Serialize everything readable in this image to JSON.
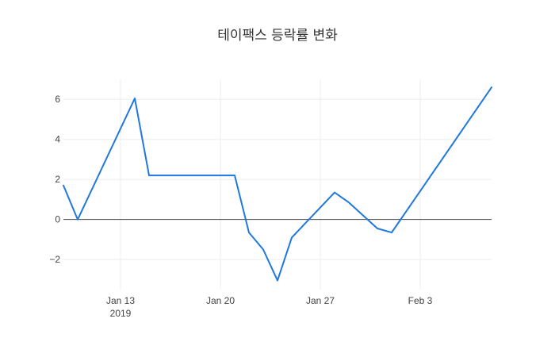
{
  "chart_data": {
    "type": "line",
    "title": "테이팩스 등락률 변화",
    "xlabel": "",
    "ylabel": "",
    "x": [
      "2019-01-09",
      "2019-01-10",
      "2019-01-14",
      "2019-01-15",
      "2019-01-21",
      "2019-01-22",
      "2019-01-23",
      "2019-01-24",
      "2019-01-25",
      "2019-01-28",
      "2019-01-29",
      "2019-01-31",
      "2019-02-01",
      "2019-02-08"
    ],
    "y": [
      1.7,
      0.0,
      6.05,
      2.2,
      2.2,
      -0.65,
      -1.5,
      -3.05,
      -0.9,
      1.35,
      0.85,
      -0.45,
      -0.65,
      6.6
    ],
    "xlim": [
      "2019-01-09",
      "2019-02-08"
    ],
    "ylim": [
      -3.5,
      7.0
    ],
    "x_ticks": [
      {
        "date": "2019-01-13",
        "label": "Jan 13",
        "sublabel": "2019"
      },
      {
        "date": "2019-01-20",
        "label": "Jan 20",
        "sublabel": ""
      },
      {
        "date": "2019-01-27",
        "label": "Jan 27",
        "sublabel": ""
      },
      {
        "date": "2019-02-03",
        "label": "Feb 3",
        "sublabel": ""
      }
    ],
    "y_ticks": [
      {
        "value": -2,
        "label": "−2"
      },
      {
        "value": 0,
        "label": "0"
      },
      {
        "value": 2,
        "label": "2"
      },
      {
        "value": 4,
        "label": "4"
      },
      {
        "value": 6,
        "label": "6"
      }
    ],
    "grid": true,
    "legend": "none",
    "line_color": "#1f77e0"
  }
}
